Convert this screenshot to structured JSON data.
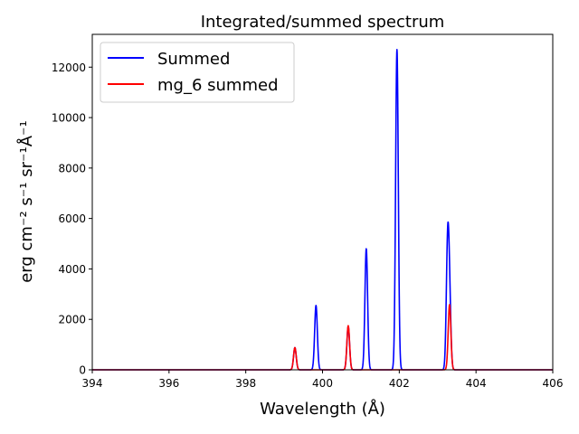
{
  "chart_data": {
    "type": "line",
    "title": "Integrated/summed spectrum",
    "xlabel": "Wavelength (Å)",
    "ylabel": "erg cm⁻² s⁻¹ sr⁻¹Å⁻¹",
    "xlim": [
      394,
      406
    ],
    "ylim": [
      0,
      13300
    ],
    "xticks": [
      394,
      396,
      398,
      400,
      402,
      404,
      406
    ],
    "yticks": [
      0,
      2000,
      4000,
      6000,
      8000,
      10000,
      12000
    ],
    "grid": false,
    "legend_position": "top-left",
    "series": [
      {
        "name": "Summed",
        "color": "#0000ff",
        "peaks": [
          {
            "center": 399.28,
            "height": 880,
            "sigma": 0.035
          },
          {
            "center": 399.83,
            "height": 2550,
            "sigma": 0.035
          },
          {
            "center": 400.67,
            "height": 1720,
            "sigma": 0.035
          },
          {
            "center": 401.14,
            "height": 4800,
            "sigma": 0.035
          },
          {
            "center": 401.94,
            "height": 12700,
            "sigma": 0.035
          },
          {
            "center": 403.26,
            "height": 4700,
            "sigma": 0.035
          },
          {
            "center": 403.31,
            "height": 2580,
            "sigma": 0.035
          }
        ]
      },
      {
        "name": "mg_6 summed",
        "color": "#ff0000",
        "peaks": [
          {
            "center": 399.28,
            "height": 880,
            "sigma": 0.035
          },
          {
            "center": 400.67,
            "height": 1750,
            "sigma": 0.035
          },
          {
            "center": 403.31,
            "height": 2580,
            "sigma": 0.035
          }
        ]
      }
    ]
  }
}
